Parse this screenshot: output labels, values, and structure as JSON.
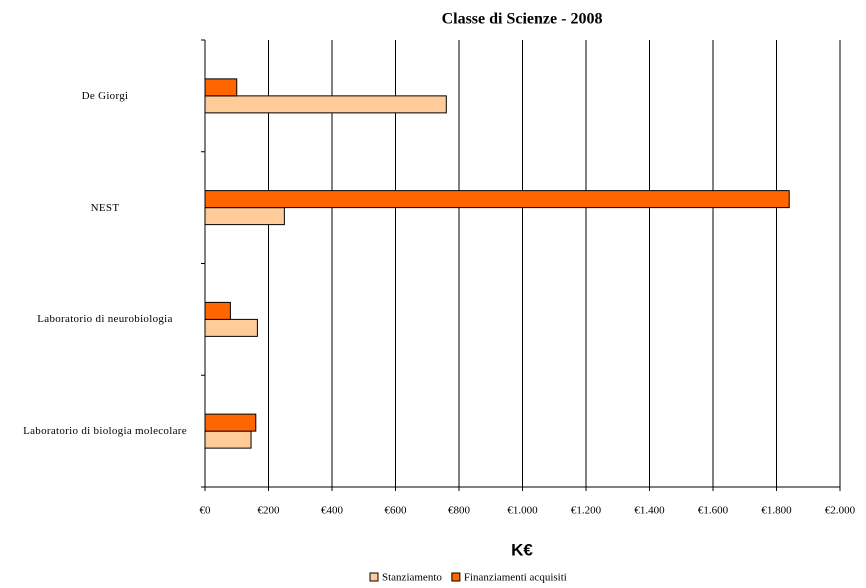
{
  "chart_data": {
    "type": "hbar",
    "title": "Classe di Scienze - 2008",
    "xlabel": "K€",
    "categories": [
      "De Giorgi",
      "NEST",
      "Laboratorio di neurobiologia",
      "Laboratorio di biologia molecolare"
    ],
    "series": [
      {
        "name": "Stanziamento",
        "color": "#FFCC99",
        "values": [
          760,
          250,
          165,
          145
        ]
      },
      {
        "name": "Finanziamenti acquisiti",
        "color": "#FF6600",
        "values": [
          100,
          1840,
          80,
          160
        ]
      }
    ],
    "xlim": [
      0,
      2000
    ],
    "xticks": [
      {
        "value": 0,
        "label": "€0"
      },
      {
        "value": 200,
        "label": "€200"
      },
      {
        "value": 400,
        "label": "€400"
      },
      {
        "value": 600,
        "label": "€600"
      },
      {
        "value": 800,
        "label": "€800"
      },
      {
        "value": 1000,
        "label": "€1.000"
      },
      {
        "value": 1200,
        "label": "€1.200"
      },
      {
        "value": 1400,
        "label": "€1.400"
      },
      {
        "value": 1600,
        "label": "€1.600"
      },
      {
        "value": 1800,
        "label": "€1.800"
      },
      {
        "value": 2000,
        "label": "€2.000"
      }
    ],
    "grid": true,
    "legend": "bottom"
  }
}
